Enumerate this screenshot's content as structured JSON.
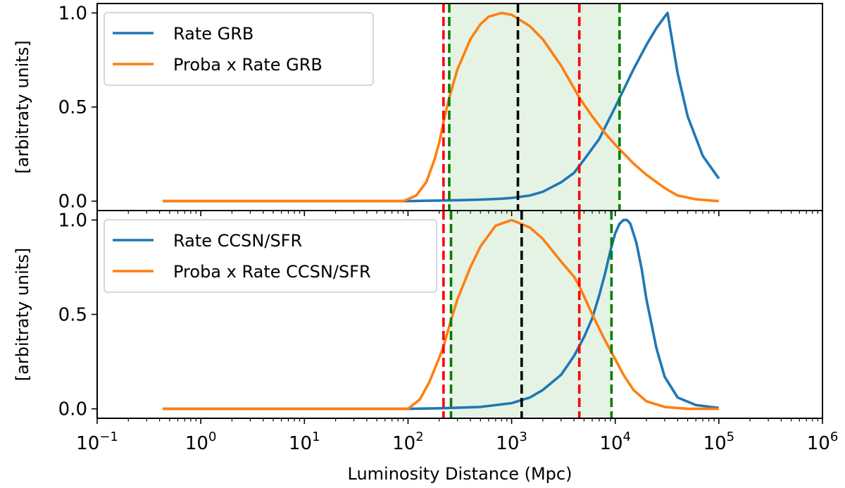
{
  "chart_data": [
    {
      "type": "line",
      "panel": "top",
      "ylabel": "[arbitraty units]",
      "xlabel": "",
      "xscale": "log",
      "xlim": [
        0.1,
        1000000
      ],
      "ylim": [
        -0.05,
        1.05
      ],
      "y_ticks": [
        "0.0",
        "0.5",
        "1.0"
      ],
      "legend": "top-left",
      "grid": false,
      "shaded_band": {
        "x0": 250,
        "x1": 11000,
        "color": "#2ca02c"
      },
      "vlines": [
        {
          "x": 220,
          "color": "#ff0000"
        },
        {
          "x": 4500,
          "color": "#ff0000"
        },
        {
          "x": 250,
          "color": "#008000"
        },
        {
          "x": 11000,
          "color": "#008000"
        },
        {
          "x": 1150,
          "color": "#000000"
        }
      ],
      "series": [
        {
          "name": "Rate GRB",
          "color": "#1f77b4",
          "x": [
            0.43,
            1,
            10,
            100,
            150,
            200,
            300,
            500,
            800,
            1000,
            1500,
            2000,
            3000,
            4000,
            5000,
            7000,
            10000,
            15000,
            20000,
            25000,
            30000,
            32000,
            40000,
            50000,
            70000,
            100000
          ],
          "y": [
            0.0,
            0.0,
            0.0,
            0.0,
            0.002,
            0.003,
            0.005,
            0.008,
            0.013,
            0.017,
            0.03,
            0.05,
            0.1,
            0.15,
            0.22,
            0.33,
            0.5,
            0.7,
            0.83,
            0.92,
            0.98,
            1.0,
            0.68,
            0.45,
            0.24,
            0.12
          ]
        },
        {
          "name": "Proba x Rate GRB",
          "color": "#ff7f0e",
          "x": [
            0.43,
            1,
            10,
            90,
            120,
            150,
            180,
            200,
            220,
            250,
            300,
            400,
            500,
            600,
            800,
            1000,
            1500,
            2000,
            3000,
            4000,
            4500,
            6000,
            8000,
            10000,
            15000,
            20000,
            30000,
            32000,
            40000,
            60000,
            100000
          ],
          "y": [
            0.0,
            0.0,
            0.0,
            0.0,
            0.03,
            0.1,
            0.22,
            0.31,
            0.42,
            0.55,
            0.7,
            0.86,
            0.94,
            0.98,
            1.0,
            0.99,
            0.93,
            0.86,
            0.72,
            0.6,
            0.55,
            0.45,
            0.36,
            0.3,
            0.2,
            0.14,
            0.07,
            0.06,
            0.03,
            0.01,
            0.0
          ]
        }
      ]
    },
    {
      "type": "line",
      "panel": "bottom",
      "ylabel": "[arbitraty units]",
      "xlabel": "Luminosity Distance (Mpc)",
      "xscale": "log",
      "xlim": [
        0.1,
        1000000
      ],
      "ylim": [
        -0.05,
        1.05
      ],
      "x_ticks": [
        {
          "base": "10",
          "exp": "−1"
        },
        {
          "base": "10",
          "exp": "0"
        },
        {
          "base": "10",
          "exp": "1"
        },
        {
          "base": "10",
          "exp": "2"
        },
        {
          "base": "10",
          "exp": "3"
        },
        {
          "base": "10",
          "exp": "4"
        },
        {
          "base": "10",
          "exp": "5"
        },
        {
          "base": "10",
          "exp": "6"
        }
      ],
      "y_ticks": [
        "0.0",
        "0.5",
        "1.0"
      ],
      "legend": "top-left",
      "grid": false,
      "shaded_band": {
        "x0": 260,
        "x1": 9200,
        "color": "#2ca02c"
      },
      "vlines": [
        {
          "x": 220,
          "color": "#ff0000"
        },
        {
          "x": 4500,
          "color": "#ff0000"
        },
        {
          "x": 260,
          "color": "#008000"
        },
        {
          "x": 9200,
          "color": "#008000"
        },
        {
          "x": 1250,
          "color": "#000000"
        }
      ],
      "series": [
        {
          "name": "Rate CCSN/SFR",
          "color": "#1f77b4",
          "x": [
            0.43,
            1,
            10,
            100,
            200,
            500,
            1000,
            1500,
            2000,
            3000,
            4000,
            5000,
            6000,
            7000,
            8000,
            9000,
            10000,
            11000,
            12000,
            13000,
            14000,
            16000,
            18000,
            20000,
            25000,
            30000,
            40000,
            60000,
            100000
          ],
          "y": [
            0.0,
            0.0,
            0.0,
            0.0,
            0.003,
            0.01,
            0.03,
            0.06,
            0.1,
            0.18,
            0.28,
            0.38,
            0.48,
            0.6,
            0.72,
            0.84,
            0.93,
            0.98,
            1.0,
            1.0,
            0.98,
            0.88,
            0.74,
            0.58,
            0.32,
            0.17,
            0.06,
            0.02,
            0.005
          ]
        },
        {
          "name": "Proba x Rate CCSN/SFR",
          "color": "#ff7f0e",
          "x": [
            0.43,
            1,
            10,
            100,
            130,
            160,
            200,
            220,
            260,
            300,
            400,
            500,
            700,
            1000,
            1500,
            2000,
            3000,
            4000,
            4500,
            6000,
            8000,
            9200,
            12000,
            15000,
            20000,
            30000,
            50000,
            100000
          ],
          "y": [
            0.0,
            0.0,
            0.0,
            0.0,
            0.05,
            0.14,
            0.27,
            0.33,
            0.47,
            0.58,
            0.75,
            0.86,
            0.97,
            1.0,
            0.96,
            0.9,
            0.78,
            0.7,
            0.65,
            0.5,
            0.36,
            0.3,
            0.18,
            0.1,
            0.04,
            0.01,
            0.0,
            0.0
          ]
        }
      ]
    }
  ]
}
